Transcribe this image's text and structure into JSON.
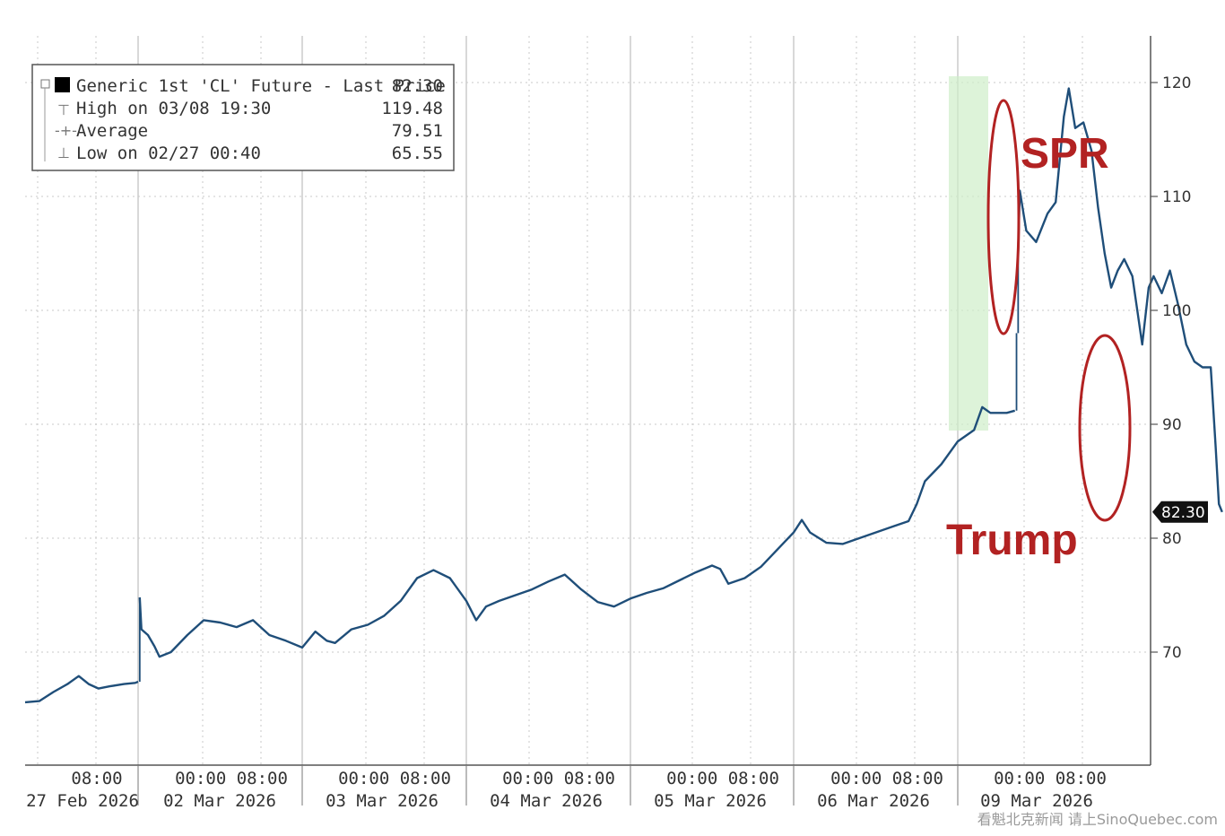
{
  "chart_data": {
    "type": "line",
    "title": "",
    "xlabel": "",
    "ylabel": "",
    "ylim": [
      60,
      122
    ],
    "y_ticks": [
      70,
      80,
      90,
      100,
      110,
      120
    ],
    "grid": true,
    "legend_placement": "top-left",
    "legend": {
      "rows": [
        {
          "label": "Generic 1st 'CL' Future - Last Price",
          "value": "82.30"
        },
        {
          "label": "High on 03/08 19:30",
          "value": "119.48"
        },
        {
          "label": "Average",
          "value": "79.51"
        },
        {
          "label": "Low on 02/27 00:40",
          "value": "65.55"
        }
      ]
    },
    "last_price_tag": "82.30",
    "x_tick_labels": [
      {
        "time": "08:00",
        "date": "27 Feb 2026"
      },
      {
        "time": "00:00 08:00",
        "date": "02 Mar 2026"
      },
      {
        "time": "00:00 08:00",
        "date": "03 Mar 2026"
      },
      {
        "time": "00:00 08:00",
        "date": "04 Mar 2026"
      },
      {
        "time": "00:00 08:00",
        "date": "05 Mar 2026"
      },
      {
        "time": "00:00 08:00",
        "date": "06 Mar 2026"
      },
      {
        "time": "00:00 08:00",
        "date": "09 Mar 2026"
      }
    ],
    "series": [
      {
        "color": "#1f4e79",
        "points": [
          [
            0,
            65.6
          ],
          [
            0.1,
            65.7
          ],
          [
            0.2,
            66.5
          ],
          [
            0.3,
            67.2
          ],
          [
            0.38,
            67.9
          ],
          [
            0.45,
            67.2
          ],
          [
            0.52,
            66.8
          ],
          [
            0.6,
            67.0
          ],
          [
            0.7,
            67.2
          ],
          [
            0.78,
            67.3
          ],
          [
            0.8,
            67.4
          ],
          [
            0.81,
            74.8
          ],
          [
            0.82,
            72.0
          ],
          [
            0.86,
            71.5
          ],
          [
            0.9,
            70.5
          ],
          [
            0.93,
            69.6
          ],
          [
            1.0,
            70.0
          ],
          [
            1.1,
            71.5
          ],
          [
            1.2,
            72.8
          ],
          [
            1.3,
            72.6
          ],
          [
            1.4,
            72.2
          ],
          [
            1.5,
            72.8
          ],
          [
            1.6,
            71.5
          ],
          [
            1.7,
            71.0
          ],
          [
            1.8,
            70.4
          ],
          [
            1.88,
            71.8
          ],
          [
            1.95,
            71.0
          ],
          [
            2.0,
            70.8
          ],
          [
            2.1,
            72.0
          ],
          [
            2.2,
            72.4
          ],
          [
            2.3,
            73.2
          ],
          [
            2.4,
            74.5
          ],
          [
            2.5,
            76.5
          ],
          [
            2.6,
            77.2
          ],
          [
            2.7,
            76.5
          ],
          [
            2.8,
            74.5
          ],
          [
            2.86,
            72.8
          ],
          [
            2.92,
            74.0
          ],
          [
            3.0,
            74.5
          ],
          [
            3.1,
            75.0
          ],
          [
            3.2,
            75.5
          ],
          [
            3.3,
            76.2
          ],
          [
            3.4,
            76.8
          ],
          [
            3.5,
            75.5
          ],
          [
            3.6,
            74.4
          ],
          [
            3.7,
            74.0
          ],
          [
            3.8,
            74.7
          ],
          [
            3.9,
            75.2
          ],
          [
            4.0,
            75.6
          ],
          [
            4.1,
            76.3
          ],
          [
            4.2,
            77.0
          ],
          [
            4.3,
            77.6
          ],
          [
            4.35,
            77.3
          ],
          [
            4.4,
            76.0
          ],
          [
            4.5,
            76.5
          ],
          [
            4.6,
            77.5
          ],
          [
            4.7,
            79.0
          ],
          [
            4.8,
            80.5
          ],
          [
            4.85,
            81.6
          ],
          [
            4.9,
            80.5
          ],
          [
            5.0,
            79.6
          ],
          [
            5.1,
            79.5
          ],
          [
            5.2,
            80.0
          ],
          [
            5.3,
            80.5
          ],
          [
            5.4,
            81.0
          ],
          [
            5.5,
            81.5
          ],
          [
            5.55,
            83.0
          ],
          [
            5.6,
            85.0
          ],
          [
            5.7,
            86.5
          ],
          [
            5.8,
            88.5
          ],
          [
            5.9,
            89.5
          ],
          [
            5.95,
            91.5
          ],
          [
            6.0,
            91.0
          ],
          [
            6.1,
            91.0
          ],
          [
            6.15,
            91.2
          ],
          [
            6.16,
            98.0
          ],
          [
            6.17,
            105.0
          ],
          [
            6.18,
            110.5
          ],
          [
            6.22,
            107.0
          ],
          [
            6.28,
            106.0
          ],
          [
            6.35,
            108.5
          ],
          [
            6.4,
            109.5
          ],
          [
            6.45,
            117.0
          ],
          [
            6.48,
            119.48
          ],
          [
            6.52,
            116.0
          ],
          [
            6.57,
            116.5
          ],
          [
            6.62,
            114.0
          ],
          [
            6.66,
            109.0
          ],
          [
            6.7,
            105.0
          ],
          [
            6.74,
            102.0
          ],
          [
            6.78,
            103.5
          ],
          [
            6.82,
            104.5
          ],
          [
            6.87,
            103.0
          ],
          [
            6.9,
            100.0
          ],
          [
            6.93,
            97.0
          ],
          [
            6.97,
            102.0
          ],
          [
            7.0,
            103.0
          ],
          [
            7.05,
            101.5
          ],
          [
            7.1,
            103.5
          ],
          [
            7.15,
            100.5
          ],
          [
            7.2,
            97.0
          ],
          [
            7.25,
            95.5
          ],
          [
            7.3,
            95.0
          ],
          [
            7.35,
            95.0
          ],
          [
            7.38,
            88.0
          ],
          [
            7.4,
            83.0
          ],
          [
            7.42,
            82.3
          ]
        ]
      }
    ],
    "annotations": [
      {
        "text": "SPR"
      },
      {
        "text": "Trump"
      }
    ]
  },
  "watermark": "看魁北克新闻 请上SinoQuebec.com"
}
